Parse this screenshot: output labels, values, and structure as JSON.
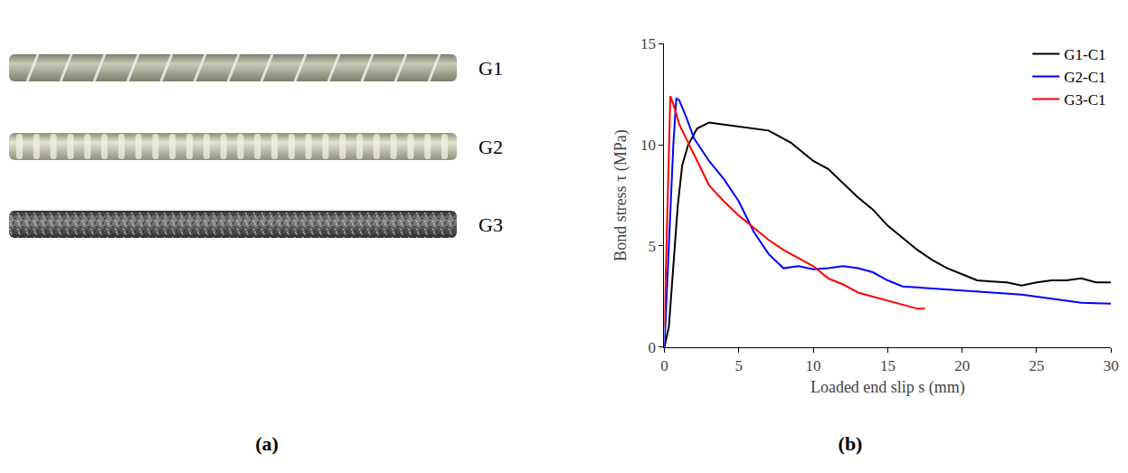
{
  "photo_panel": {
    "label": "(a)",
    "bars": [
      "G1",
      "G2",
      "G3"
    ]
  },
  "chart_panel_label": "(b)",
  "chart_data": {
    "type": "line",
    "x_label": "Loaded end slip s (mm)",
    "y_label": "Bond stress τ (MPa)",
    "xlim": [
      0,
      30
    ],
    "xticks": [
      0,
      5,
      10,
      15,
      20,
      25,
      30
    ],
    "ylim": [
      0,
      15
    ],
    "yticks": [
      0,
      5,
      10,
      15
    ],
    "grid": false,
    "legend": "top right",
    "series": [
      {
        "name": "G1-C1",
        "color": "#000000",
        "x": [
          0,
          0.3,
          0.6,
          0.9,
          1.2,
          1.6,
          2.2,
          3,
          4,
          5,
          6,
          7,
          7.5,
          8.5,
          9.5,
          10,
          11,
          12,
          13,
          14,
          15,
          16,
          17,
          18,
          19,
          20,
          21,
          22,
          23,
          24,
          25,
          26,
          27,
          28,
          29,
          30
        ],
        "values": [
          0,
          1,
          4,
          7,
          9,
          10,
          10.8,
          11.1,
          11.0,
          10.9,
          10.8,
          10.7,
          10.5,
          10.1,
          9.5,
          9.2,
          8.8,
          8.1,
          7.4,
          6.8,
          6.0,
          5.4,
          4.8,
          4.3,
          3.9,
          3.6,
          3.3,
          3.25,
          3.2,
          3.05,
          3.2,
          3.3,
          3.3,
          3.4,
          3.2,
          3.2
        ]
      },
      {
        "name": "G2-C1",
        "color": "#0000ff",
        "x": [
          0,
          0.3,
          0.6,
          0.8,
          1.0,
          1.5,
          2,
          3,
          4,
          5,
          6,
          7,
          8,
          9,
          10,
          11,
          12,
          13,
          14,
          15,
          16,
          18,
          20,
          22,
          24,
          26,
          28,
          30
        ],
        "values": [
          0,
          5,
          10,
          12.3,
          12.2,
          11.3,
          10.3,
          9.2,
          8.3,
          7.2,
          5.7,
          4.6,
          3.9,
          4.0,
          3.85,
          3.9,
          4.0,
          3.9,
          3.7,
          3.3,
          3.0,
          2.9,
          2.8,
          2.7,
          2.6,
          2.4,
          2.2,
          2.15
        ]
      },
      {
        "name": "G3-C1",
        "color": "#ff0000",
        "x": [
          0,
          0.2,
          0.4,
          0.6,
          1,
          2,
          3,
          4,
          5,
          6,
          7,
          8,
          9,
          10,
          11,
          12,
          13,
          14,
          15,
          16,
          17,
          17.5
        ],
        "values": [
          1,
          7,
          12.4,
          12,
          11,
          9.5,
          8,
          7.2,
          6.5,
          5.9,
          5.3,
          4.8,
          4.4,
          4.0,
          3.4,
          3.1,
          2.7,
          2.5,
          2.3,
          2.1,
          1.9,
          1.9
        ]
      }
    ]
  }
}
